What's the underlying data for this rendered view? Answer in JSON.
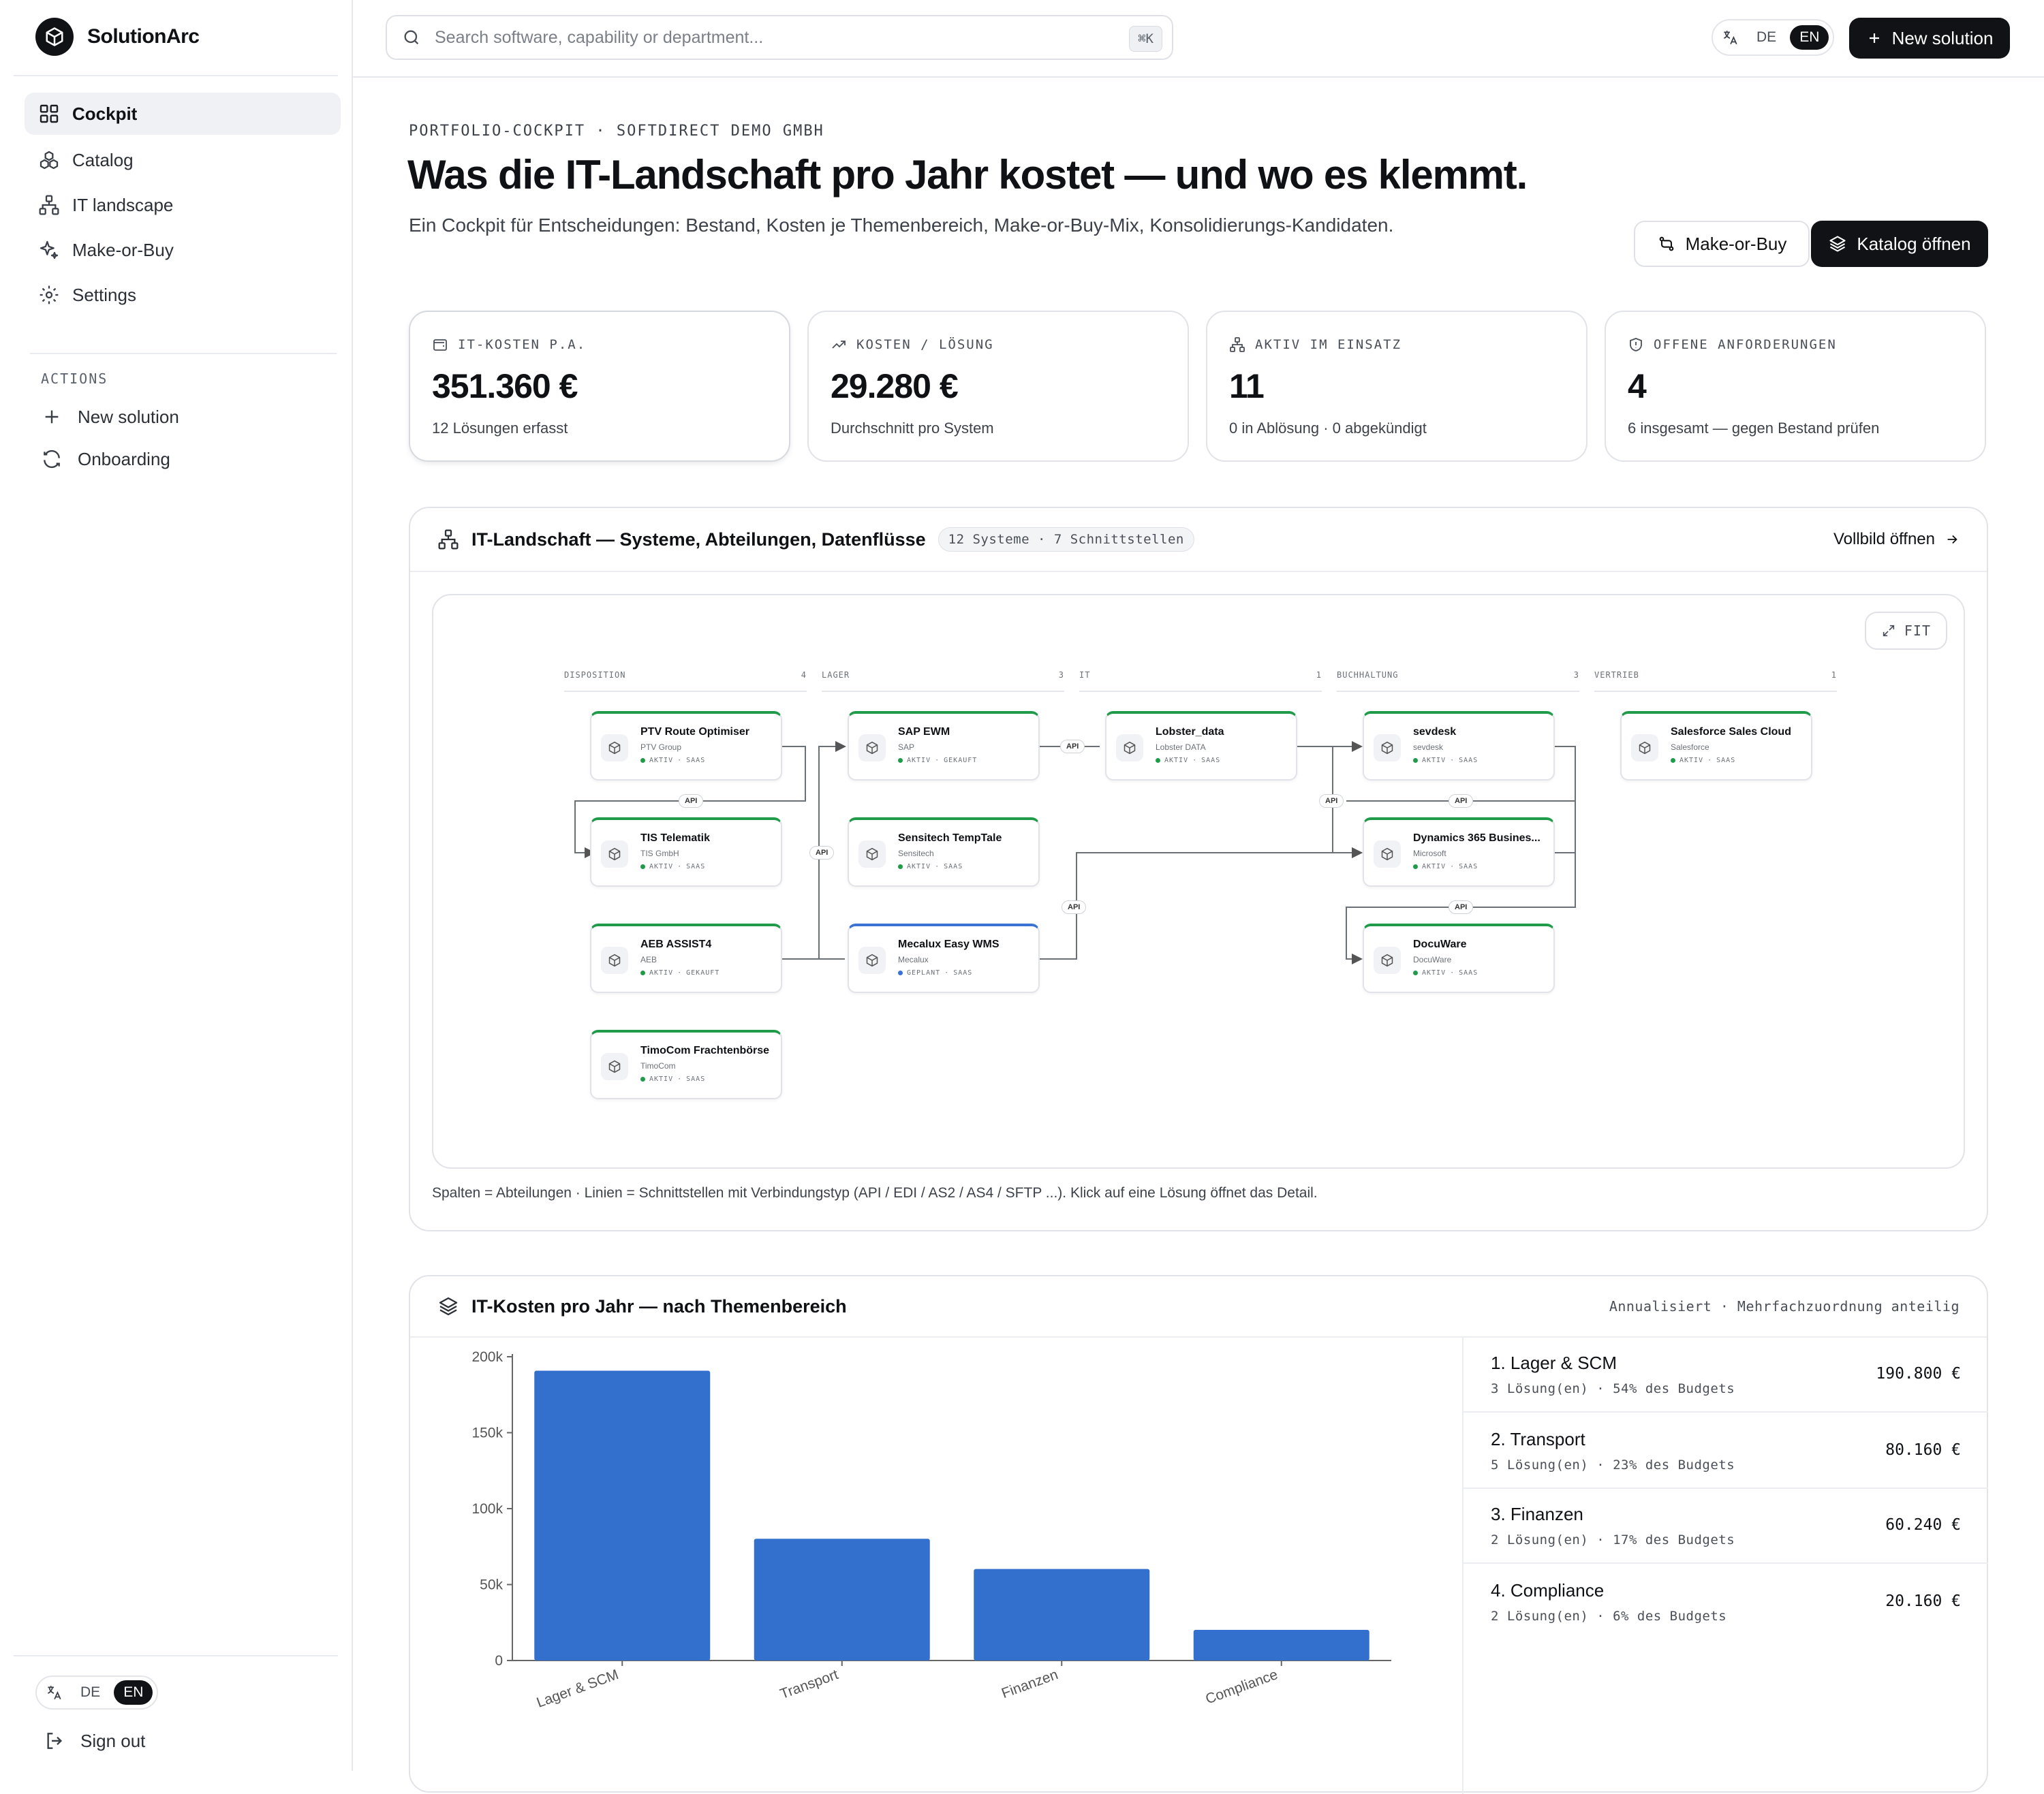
{
  "app": {
    "name": "SolutionArc"
  },
  "sidebar": {
    "nav": [
      {
        "label": "Cockpit",
        "icon": "grid-icon",
        "active": true
      },
      {
        "label": "Catalog",
        "icon": "boxes-icon"
      },
      {
        "label": "IT landscape",
        "icon": "network-icon"
      },
      {
        "label": "Make-or-Buy",
        "icon": "sparkle-icon"
      },
      {
        "label": "Settings",
        "icon": "gear-icon"
      }
    ],
    "actions_heading": "ACTIONS",
    "actions": [
      {
        "label": "New solution",
        "icon": "plus-icon"
      },
      {
        "label": "Onboarding",
        "icon": "refresh-icon"
      }
    ],
    "lang": {
      "de": "DE",
      "en": "EN",
      "selected": "EN"
    },
    "sign_out": "Sign out"
  },
  "topbar": {
    "search_placeholder": "Search software, capability or department...",
    "search_shortcut": "⌘K",
    "lang": {
      "de": "DE",
      "en": "EN",
      "selected": "EN"
    },
    "new_solution": "New solution"
  },
  "header": {
    "eyebrow": "PORTFOLIO-COCKPIT · SOFTDIRECT DEMO GMBH",
    "title": "Was die IT-Landschaft pro Jahr kostet — und wo es klemmt.",
    "subtitle": "Ein Cockpit für Entscheidungen: Bestand, Kosten je Themenbereich, Make-or-Buy-Mix, Konsolidierungs-Kandidaten.",
    "btn_make_or_buy": "Make-or-Buy",
    "btn_catalog": "Katalog öffnen"
  },
  "kpis": [
    {
      "label": "IT-KOSTEN P.A.",
      "value": "351.360 €",
      "sub": "12 Lösungen erfasst",
      "icon": "wallet-icon"
    },
    {
      "label": "KOSTEN / LÖSUNG",
      "value": "29.280 €",
      "sub": "Durchschnitt pro System",
      "icon": "trend-up-icon"
    },
    {
      "label": "AKTIV IM EINSATZ",
      "value": "11",
      "sub": "0 in Ablösung · 0 abgekündigt",
      "icon": "network-icon"
    },
    {
      "label": "OFFENE ANFORDERUNGEN",
      "value": "4",
      "sub": "6 insgesamt — gegen Bestand prüfen",
      "icon": "shield-icon"
    }
  ],
  "landscape": {
    "title": "IT-Landschaft — Systeme, Abteilungen, Datenflüsse",
    "badge": "12 Systeme · 7 Schnittstellen",
    "fullscreen": "Vollbild öffnen",
    "fit": "FIT",
    "columns": [
      {
        "name": "DISPOSITION",
        "count": "4"
      },
      {
        "name": "LAGER",
        "count": "3"
      },
      {
        "name": "IT",
        "count": "1"
      },
      {
        "name": "BUCHHALTUNG",
        "count": "3"
      },
      {
        "name": "VERTRIEB",
        "count": "1"
      }
    ],
    "nodes": [
      {
        "name": "PTV Route Optimiser",
        "vendor": "PTV Group",
        "status": "AKTIV",
        "type": "SAAS"
      },
      {
        "name": "TIS Telematik",
        "vendor": "TIS GmbH",
        "status": "AKTIV",
        "type": "SAAS"
      },
      {
        "name": "AEB ASSIST4",
        "vendor": "AEB",
        "status": "AKTIV",
        "type": "GEKAUFT"
      },
      {
        "name": "TimoCom Frachtenbörse",
        "vendor": "TimoCom",
        "status": "AKTIV",
        "type": "SAAS"
      },
      {
        "name": "SAP EWM",
        "vendor": "SAP",
        "status": "AKTIV",
        "type": "GEKAUFT"
      },
      {
        "name": "Sensitech TempTale",
        "vendor": "Sensitech",
        "status": "AKTIV",
        "type": "SAAS"
      },
      {
        "name": "Mecalux Easy WMS",
        "vendor": "Mecalux",
        "status": "GEPLANT",
        "type": "SAAS"
      },
      {
        "name": "Lobster_data",
        "vendor": "Lobster DATA",
        "status": "AKTIV",
        "type": "SAAS"
      },
      {
        "name": "sevdesk",
        "vendor": "sevdesk",
        "status": "AKTIV",
        "type": "SAAS"
      },
      {
        "name": "Dynamics 365 Busines...",
        "vendor": "Microsoft",
        "status": "AKTIV",
        "type": "SAAS"
      },
      {
        "name": "DocuWare",
        "vendor": "DocuWare",
        "status": "AKTIV",
        "type": "SAAS"
      },
      {
        "name": "Salesforce Sales Cloud",
        "vendor": "Salesforce",
        "status": "AKTIV",
        "type": "SAAS"
      }
    ],
    "edge_label": "API",
    "note": "Spalten = Abteilungen · Linien = Schnittstellen mit Verbindungstyp (API / EDI / AS2 / AS4 / SFTP ...). Klick auf eine Lösung öffnet das Detail."
  },
  "costs": {
    "title": "IT-Kosten pro Jahr — nach Themenbereich",
    "note": "Annualisiert · Mehrfachzuordnung anteilig",
    "rows": [
      {
        "name": "1. Lager & SCM",
        "meta": "3 Lösung(en) · 54% des Budgets",
        "amount": "190.800 €"
      },
      {
        "name": "2. Transport",
        "meta": "5 Lösung(en) · 23% des Budgets",
        "amount": "80.160 €"
      },
      {
        "name": "3. Finanzen",
        "meta": "2 Lösung(en) · 17% des Budgets",
        "amount": "60.240 €"
      },
      {
        "name": "4. Compliance",
        "meta": "2 Lösung(en) · 6% des Budgets",
        "amount": "20.160 €"
      }
    ]
  },
  "chart_data": {
    "type": "bar",
    "categories": [
      "Lager & SCM",
      "Transport",
      "Finanzen",
      "Compliance"
    ],
    "values": [
      190800,
      80160,
      60240,
      20160
    ],
    "yticks": [
      "0",
      "50k",
      "100k",
      "150k",
      "200k"
    ],
    "ylim": [
      0,
      200000
    ],
    "bar_color": "#336fcd"
  },
  "colors": {
    "accent_dark": "#101215",
    "status_active": "#1f9b4a",
    "status_planned": "#3a73d4"
  }
}
